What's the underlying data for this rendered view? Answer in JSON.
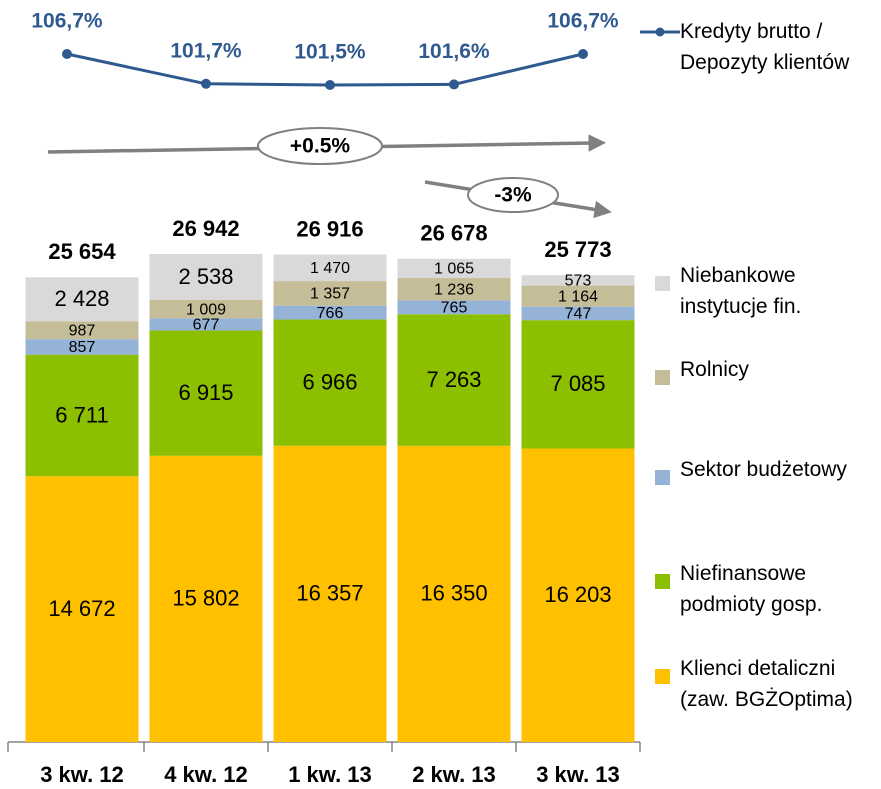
{
  "chart_data": {
    "type": "bar",
    "stacked": true,
    "categories": [
      "3 kw. 12",
      "4 kw. 12",
      "1 kw. 13",
      "2 kw. 13",
      "3 kw. 13"
    ],
    "series": [
      {
        "name": "Klienci detaliczni (zaw. BGŻOptima)",
        "color": "#FFC000",
        "values": [
          14672,
          15802,
          16357,
          16350,
          16203
        ],
        "value_labels": [
          "14 672",
          "15 802",
          "16 357",
          "16 350",
          "16 203"
        ]
      },
      {
        "name": "Niefinansowe podmioty gosp.",
        "color": "#8CBF00",
        "values": [
          6711,
          6915,
          6966,
          7263,
          7085
        ],
        "value_labels": [
          "6 711",
          "6 915",
          "6 966",
          "7 263",
          "7 085"
        ]
      },
      {
        "name": "Sektor budżetowy",
        "color": "#95B3D7",
        "values": [
          857,
          677,
          766,
          765,
          747
        ]
      },
      {
        "name": "Rolnicy",
        "color": "#C4BD97",
        "values": [
          987,
          1009,
          1357,
          1236,
          1164
        ],
        "value_labels": [
          "987",
          "1 009",
          "1 357",
          "1 236",
          "1 164"
        ]
      },
      {
        "name": "Niebankowe instytucje fin.",
        "color": "#D9D9D9",
        "values": [
          2428,
          2538,
          1470,
          1065,
          573
        ],
        "value_labels": [
          "2 428",
          "2 538",
          "1 470",
          "1 065",
          "573"
        ]
      }
    ],
    "totals": {
      "values": [
        25654,
        26942,
        26916,
        26678,
        25773
      ],
      "value_labels": [
        "25 654",
        "26 942",
        "26 916",
        "26 678",
        "25 773"
      ]
    },
    "line_series": {
      "type": "line",
      "name": "Kredyty brutto / Depozyty klientów",
      "color": "#2F5A8F",
      "values": [
        106.7,
        101.7,
        101.5,
        101.6,
        106.7
      ],
      "value_labels": [
        "106,7%",
        "101,7%",
        "101,5%",
        "101,6%",
        "106,7%"
      ]
    },
    "annotations": [
      "+0.5%",
      "-3%"
    ]
  }
}
